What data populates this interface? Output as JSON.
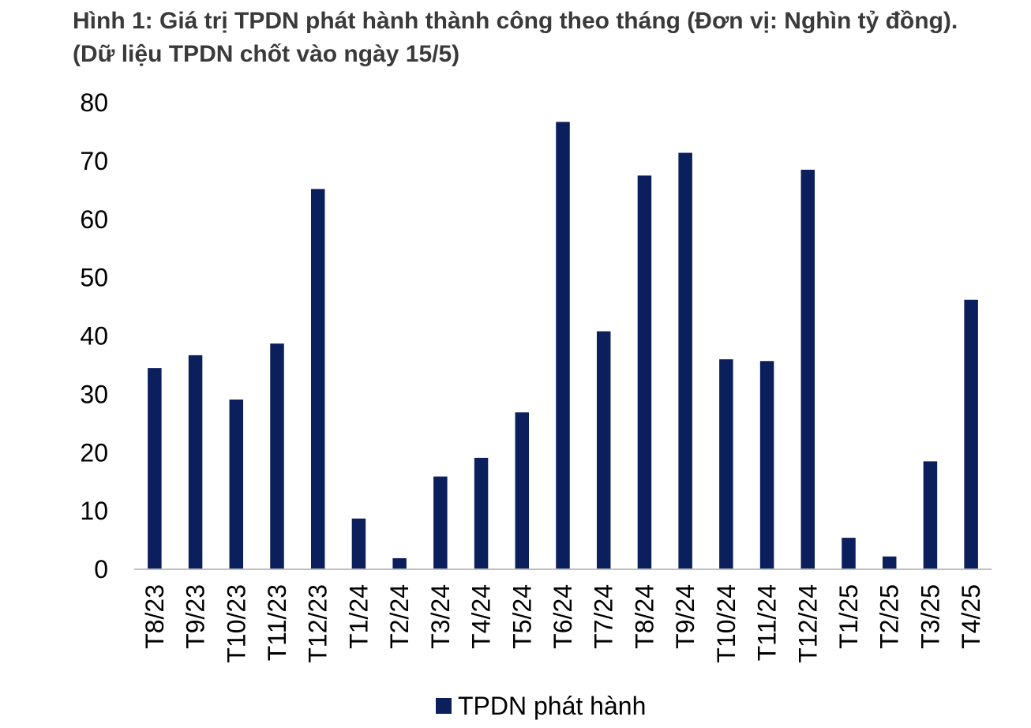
{
  "chart_data": {
    "type": "bar",
    "title": "Hình 1: Giá trị TPDN phát hành thành công theo tháng (Đơn vị: Nghìn tỷ đồng). (Dữ liệu TPDN chốt vào ngày 15/5)",
    "categories": [
      "T8/23",
      "T9/23",
      "T10/23",
      "T11/23",
      "T12/23",
      "T1/24",
      "T2/24",
      "T3/24",
      "T4/24",
      "T5/24",
      "T6/24",
      "T7/24",
      "T8/24",
      "T9/24",
      "T10/24",
      "T11/24",
      "T12/24",
      "T1/25",
      "T2/25",
      "T3/25",
      "T4/25"
    ],
    "series": [
      {
        "name": "TPDN phát hành",
        "values": [
          34.5,
          36.7,
          29.1,
          38.7,
          65.2,
          8.7,
          1.9,
          15.9,
          19.1,
          26.9,
          76.7,
          40.8,
          67.5,
          71.4,
          36.0,
          35.7,
          68.5,
          5.4,
          2.2,
          18.5,
          46.2
        ],
        "color": "#0b1f5c"
      }
    ],
    "xlabel": "",
    "ylabel": "",
    "ylim": [
      0,
      80
    ],
    "yticks": [
      0,
      10,
      20,
      30,
      40,
      50,
      60,
      70,
      80
    ],
    "grid": false,
    "legend_position": "bottom-center"
  }
}
